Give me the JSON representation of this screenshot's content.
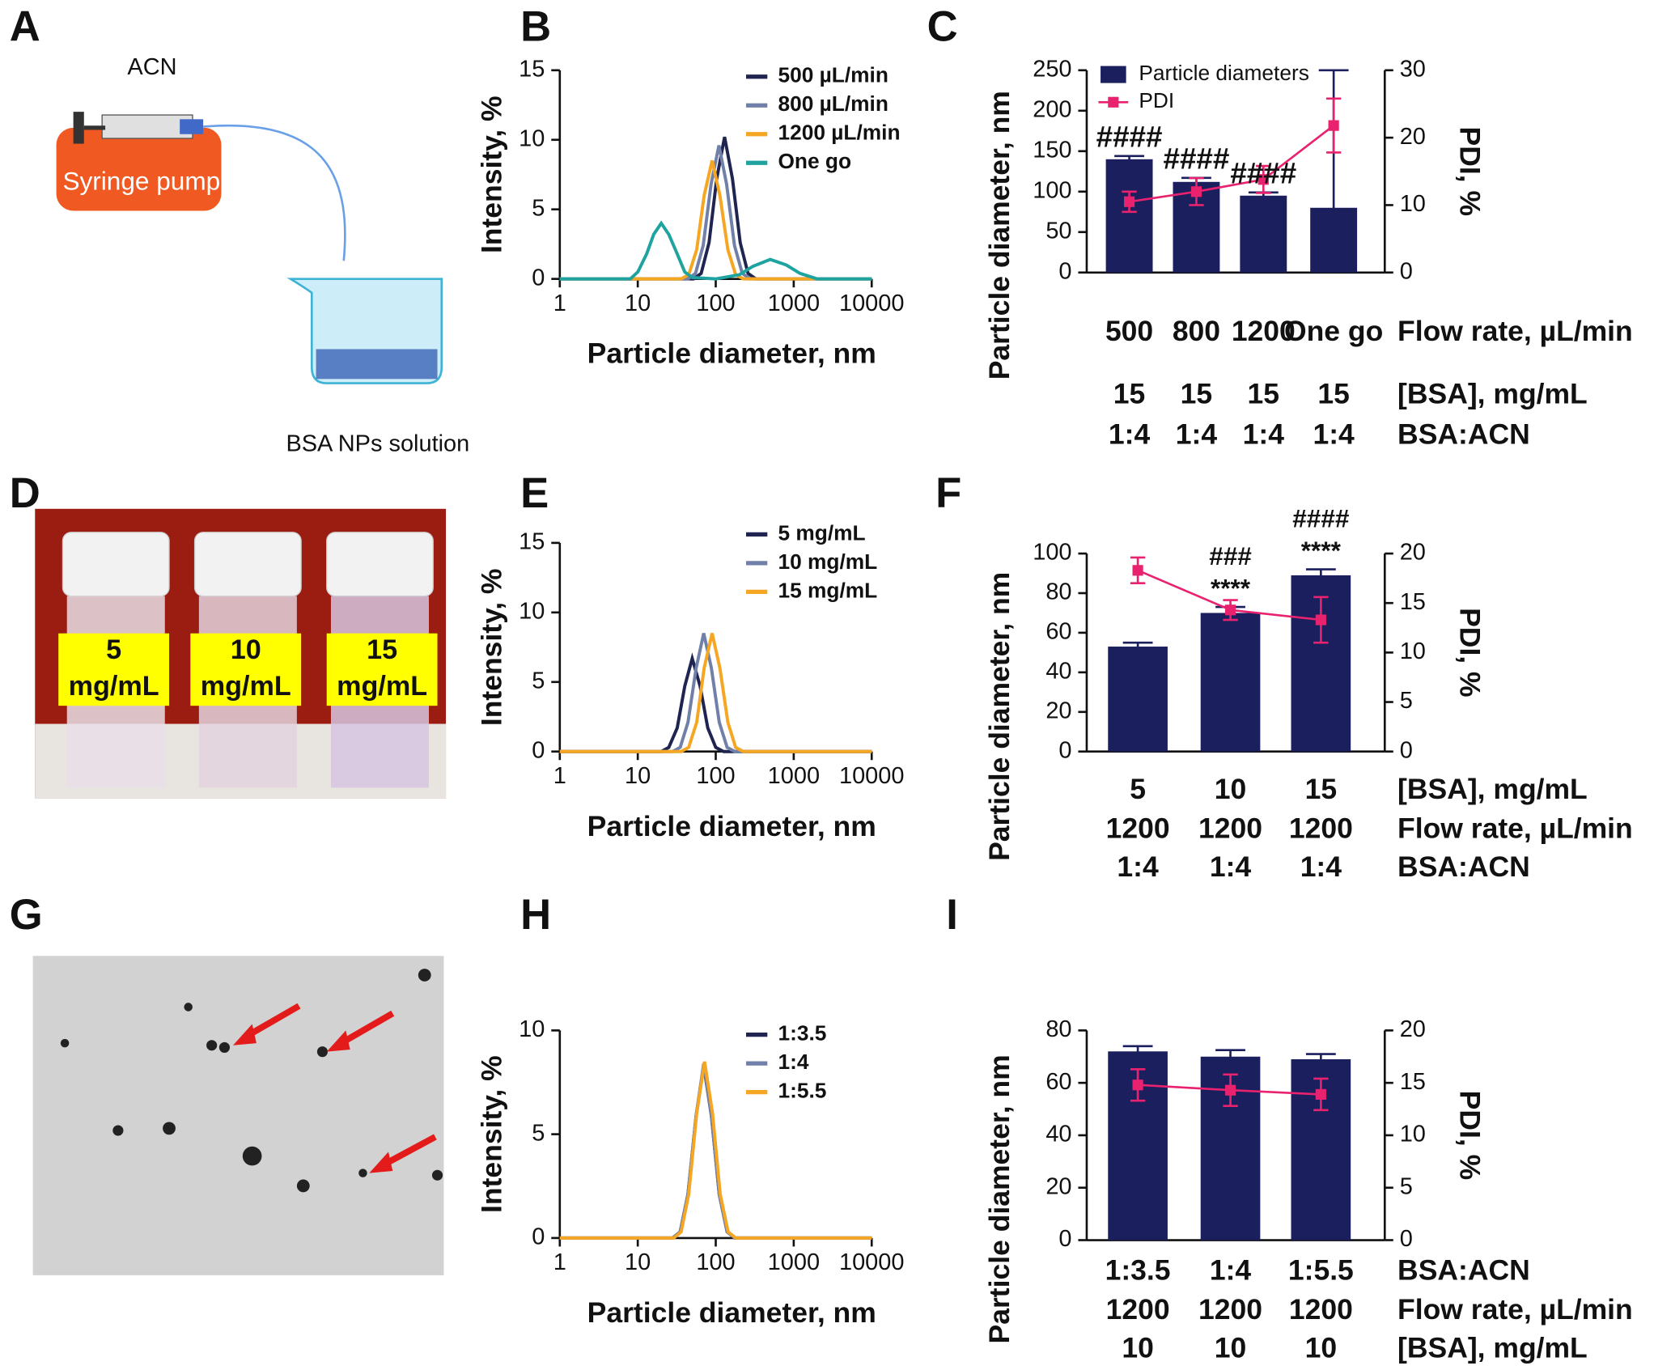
{
  "panel_labels": [
    "A",
    "B",
    "C",
    "D",
    "E",
    "F",
    "G",
    "H",
    "I"
  ],
  "diagram": {
    "reagent": "ACN",
    "pump": "Syringe pump",
    "product": "BSA NPs solution"
  },
  "photo": {
    "vial_labels": [
      [
        "5",
        "mg/mL"
      ],
      [
        "10",
        "mg/mL"
      ],
      [
        "15",
        "mg/mL"
      ]
    ]
  },
  "chart_data": [
    {
      "type": "line",
      "xlabel": "Particle diameter, nm",
      "ylabel": "Intensity, %",
      "xlog": true,
      "xlim": [
        1,
        10000
      ],
      "xticks": [
        1,
        10,
        100,
        1000,
        10000
      ],
      "ylim": [
        0,
        15
      ],
      "yticks": [
        0,
        5,
        10,
        15
      ],
      "series": [
        {
          "name": "500 µL/min",
          "color": "#1f2451",
          "x": [
            1,
            52,
            65,
            82,
            103,
            130,
            164,
            206,
            259,
            327,
            10000
          ],
          "values": [
            0,
            0,
            0.4,
            2.6,
            7.2,
            10.2,
            7.2,
            2.6,
            0.4,
            0,
            0
          ]
        },
        {
          "name": "800 µL/min",
          "color": "#7080a8",
          "x": [
            1,
            44,
            55,
            69,
            87,
            110,
            138,
            174,
            219,
            276,
            10000
          ],
          "values": [
            0,
            0,
            0.4,
            2.4,
            6.8,
            9.6,
            6.8,
            2.4,
            0.4,
            0,
            0
          ]
        },
        {
          "name": "1200 µL/min",
          "color": "#f5a623",
          "x": [
            1,
            36,
            45,
            57,
            71,
            90,
            113,
            143,
            180,
            226,
            10000
          ],
          "values": [
            0,
            0,
            0.3,
            2.1,
            6,
            8.5,
            6,
            2.1,
            0.3,
            0,
            0
          ]
        },
        {
          "name": "One go",
          "color": "#1fa3a0",
          "x": [
            1,
            8,
            10,
            13,
            16,
            20,
            25,
            32,
            40,
            50,
            100,
            200,
            300,
            500,
            800,
            1200,
            2000,
            10000
          ],
          "values": [
            0,
            0,
            0.5,
            1.8,
            3.2,
            4,
            3.2,
            1.8,
            0.5,
            0.1,
            0,
            0.3,
            0.9,
            1.4,
            1,
            0.4,
            0,
            0
          ]
        }
      ]
    },
    {
      "type": "bar",
      "ylabel": "Particle diameter, nm",
      "y2label": "PDI, %",
      "ylim": [
        0,
        250
      ],
      "yticks": [
        0,
        50,
        100,
        150,
        200,
        250
      ],
      "y2lim": [
        0,
        30
      ],
      "y2ticks": [
        0,
        10,
        20,
        30
      ],
      "series": [
        {
          "name": "Particle diameters",
          "color": "#1b1f5e",
          "values": [
            140,
            112,
            95,
            80
          ],
          "errors": [
            4,
            5,
            4,
            170
          ]
        },
        {
          "name": "PDI",
          "axis": "y2",
          "color": "#e8226e",
          "values": [
            10.5,
            12,
            13.8,
            21.8
          ],
          "errors": [
            1.5,
            2,
            2,
            4
          ]
        }
      ],
      "annotations": [
        "####",
        "####",
        "####",
        null
      ],
      "rows": [
        {
          "label": "Flow rate, µL/min",
          "values": [
            "500",
            "800",
            "1200",
            "One go"
          ]
        },
        {
          "label": "[BSA], mg/mL",
          "values": [
            "15",
            "15",
            "15",
            "15"
          ]
        },
        {
          "label": "BSA:ACN",
          "values": [
            "1:4",
            "1:4",
            "1:4",
            "1:4"
          ]
        }
      ]
    },
    {
      "type": "line",
      "xlabel": "Particle diameter, nm",
      "ylabel": "Intensity, %",
      "xlog": true,
      "xlim": [
        1,
        10000
      ],
      "xticks": [
        1,
        10,
        100,
        1000,
        10000
      ],
      "ylim": [
        0,
        15
      ],
      "yticks": [
        0,
        5,
        10,
        15
      ],
      "series": [
        {
          "name": "5 mg/mL",
          "color": "#1f2451",
          "x": [
            1,
            20,
            25,
            32,
            40,
            50,
            63,
            79,
            100,
            126,
            10000
          ],
          "values": [
            0,
            0,
            0.3,
            1.7,
            4.7,
            6.7,
            4.7,
            1.7,
            0.3,
            0,
            0
          ]
        },
        {
          "name": "10 mg/mL",
          "color": "#7080a8",
          "x": [
            1,
            28,
            35,
            44,
            56,
            70,
            88,
            111,
            140,
            176,
            10000
          ],
          "values": [
            0,
            0,
            0.3,
            2.1,
            6,
            8.5,
            6,
            2.1,
            0.3,
            0,
            0
          ]
        },
        {
          "name": "15 mg/mL",
          "color": "#f5a623",
          "x": [
            1,
            36,
            45,
            57,
            71,
            90,
            113,
            143,
            180,
            226,
            10000
          ],
          "values": [
            0,
            0,
            0.3,
            2.1,
            6,
            8.5,
            6,
            2.1,
            0.3,
            0,
            0
          ]
        }
      ]
    },
    {
      "type": "bar",
      "ylabel": "Particle diameter, nm",
      "y2label": "PDI, %",
      "ylim": [
        0,
        100
      ],
      "yticks": [
        0,
        20,
        40,
        60,
        80,
        100
      ],
      "y2lim": [
        0,
        20
      ],
      "y2ticks": [
        0,
        5,
        10,
        15,
        20
      ],
      "series": [
        {
          "color": "#1b1f5e",
          "values": [
            53,
            70,
            89
          ],
          "errors": [
            2,
            3,
            3
          ]
        },
        {
          "axis": "y2",
          "color": "#e8226e",
          "values": [
            18.3,
            14.3,
            13.3
          ],
          "errors": [
            1.3,
            1,
            2.3
          ]
        }
      ],
      "annotations": [
        null,
        "****",
        "****"
      ],
      "annotations2": [
        null,
        "###",
        "####"
      ],
      "rows": [
        {
          "label": "[BSA], mg/mL",
          "values": [
            "5",
            "10",
            "15"
          ]
        },
        {
          "label": "Flow rate, µL/min",
          "values": [
            "1200",
            "1200",
            "1200"
          ]
        },
        {
          "label": "BSA:ACN",
          "values": [
            "1:4",
            "1:4",
            "1:4"
          ]
        }
      ]
    },
    {
      "type": "line",
      "xlabel": "Particle diameter, nm",
      "ylabel": "Intensity, %",
      "xlog": true,
      "xlim": [
        1,
        10000
      ],
      "xticks": [
        1,
        10,
        100,
        1000,
        10000
      ],
      "ylim": [
        0,
        10
      ],
      "yticks": [
        0,
        5,
        10
      ],
      "series": [
        {
          "name": "1:3.5",
          "color": "#1f2451",
          "x": [
            1,
            28,
            35,
            44,
            56,
            70,
            88,
            111,
            140,
            176,
            10000
          ],
          "values": [
            0,
            0,
            0.3,
            2.1,
            5.9,
            8.3,
            5.9,
            2.1,
            0.3,
            0,
            0
          ]
        },
        {
          "name": "1:4",
          "color": "#7080a8",
          "x": [
            1,
            28,
            35,
            44,
            56,
            70,
            88,
            111,
            140,
            176,
            10000
          ],
          "values": [
            0,
            0,
            0.3,
            2.1,
            5.9,
            8.4,
            5.9,
            2.1,
            0.3,
            0,
            0
          ]
        },
        {
          "name": "1:5.5",
          "color": "#f5a623",
          "x": [
            1,
            29,
            36,
            45,
            57,
            72,
            91,
            114,
            144,
            181,
            10000
          ],
          "values": [
            0,
            0,
            0.3,
            2.1,
            6,
            8.5,
            6,
            2.1,
            0.3,
            0,
            0
          ]
        }
      ]
    },
    {
      "type": "bar",
      "ylabel": "Particle diameter, nm",
      "y2label": "PDI, %",
      "ylim": [
        0,
        80
      ],
      "yticks": [
        0,
        20,
        40,
        60,
        80
      ],
      "y2lim": [
        0,
        20
      ],
      "y2ticks": [
        0,
        5,
        10,
        15,
        20
      ],
      "series": [
        {
          "color": "#1b1f5e",
          "values": [
            72,
            70,
            69
          ],
          "errors": [
            2,
            2.5,
            2
          ]
        },
        {
          "axis": "y2",
          "color": "#e8226e",
          "values": [
            14.8,
            14.3,
            13.9
          ],
          "errors": [
            1.5,
            1.5,
            1.5
          ]
        }
      ],
      "rows": [
        {
          "label": "BSA:ACN",
          "values": [
            "1:3.5",
            "1:4",
            "1:5.5"
          ]
        },
        {
          "label": "Flow rate, µL/min",
          "values": [
            "1200",
            "1200",
            "1200"
          ]
        },
        {
          "label": "[BSA], mg/mL",
          "values": [
            "10",
            "10",
            "10"
          ]
        }
      ]
    }
  ]
}
